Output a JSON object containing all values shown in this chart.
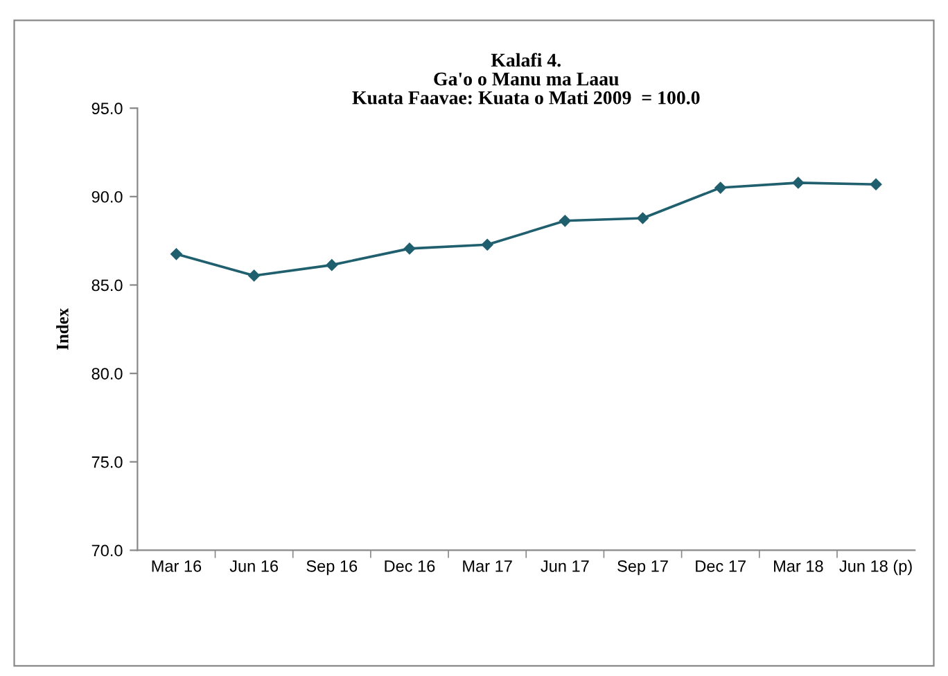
{
  "chart_data": {
    "type": "line",
    "title": "Kalafi 4.\nGa'o o Manu ma Laau\nKuata Faavae: Kuata o Mati 2009  = 100.0",
    "ylabel": "Index",
    "categories": [
      "Mar 16",
      "Jun 16",
      "Sep 16",
      "Dec 16",
      "Mar 17",
      "Jun 17",
      "Sep 17",
      "Dec 17",
      "Mar 18",
      "Jun 18 (p)"
    ],
    "series": [
      {
        "color": "#1f5f6e",
        "values": [
          86.75,
          85.53,
          86.13,
          87.06,
          87.28,
          88.63,
          88.78,
          90.5,
          90.78,
          90.69
        ]
      }
    ],
    "ylim": [
      70,
      95
    ],
    "yticks": [
      {
        "value": 70,
        "label": "70.0"
      },
      {
        "value": 75,
        "label": "75.0"
      },
      {
        "value": 80,
        "label": "80.0"
      },
      {
        "value": 85,
        "label": "85.0"
      },
      {
        "value": 90,
        "label": "90.0"
      },
      {
        "value": 95,
        "label": "95.0"
      }
    ],
    "grid": false,
    "marker": "diamond",
    "line_style": "solid"
  }
}
